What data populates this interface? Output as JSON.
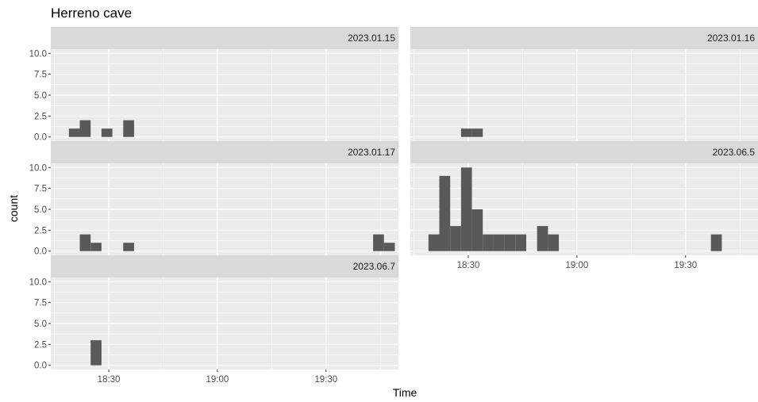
{
  "chart_data": {
    "type": "bar",
    "title": "Herreno cave",
    "xlabel": "Time",
    "ylabel": "count",
    "x_unit": "time of day (HH:MM), binwidth 3 minutes",
    "xlim": [
      "18:14",
      "19:50"
    ],
    "ylim": [
      0,
      10
    ],
    "y_ticks": [
      "0.0",
      "2.5",
      "5.0",
      "7.5",
      "10.0"
    ],
    "x_ticks": [
      "18:30",
      "19:00",
      "19:30"
    ],
    "grid": true,
    "colors": {
      "bar": "#595959",
      "panel_bg": "#ebebeb",
      "strip_bg": "#d9d9d9",
      "grid": "#ffffff"
    },
    "panels": [
      {
        "label": "2023.01.15",
        "bins": [
          {
            "x": "18:19",
            "count": 1
          },
          {
            "x": "18:22",
            "count": 2
          },
          {
            "x": "18:28",
            "count": 1
          },
          {
            "x": "18:34",
            "count": 2
          }
        ]
      },
      {
        "label": "2023.01.16",
        "bins": [
          {
            "x": "18:28",
            "count": 1
          },
          {
            "x": "18:31",
            "count": 1
          }
        ]
      },
      {
        "label": "2023.01.17",
        "bins": [
          {
            "x": "18:22",
            "count": 2
          },
          {
            "x": "18:25",
            "count": 1
          },
          {
            "x": "18:34",
            "count": 1
          },
          {
            "x": "19:43",
            "count": 2
          },
          {
            "x": "19:46",
            "count": 1
          }
        ]
      },
      {
        "label": "2023.06.5",
        "bins": [
          {
            "x": "18:19",
            "count": 2
          },
          {
            "x": "18:22",
            "count": 9
          },
          {
            "x": "18:25",
            "count": 3
          },
          {
            "x": "18:28",
            "count": 10
          },
          {
            "x": "18:31",
            "count": 5
          },
          {
            "x": "18:34",
            "count": 2
          },
          {
            "x": "18:37",
            "count": 2
          },
          {
            "x": "18:40",
            "count": 2
          },
          {
            "x": "18:43",
            "count": 2
          },
          {
            "x": "18:49",
            "count": 3
          },
          {
            "x": "18:52",
            "count": 2
          },
          {
            "x": "19:37",
            "count": 2
          }
        ]
      },
      {
        "label": "2023.06.7",
        "bins": [
          {
            "x": "18:25",
            "count": 3
          }
        ]
      }
    ]
  }
}
